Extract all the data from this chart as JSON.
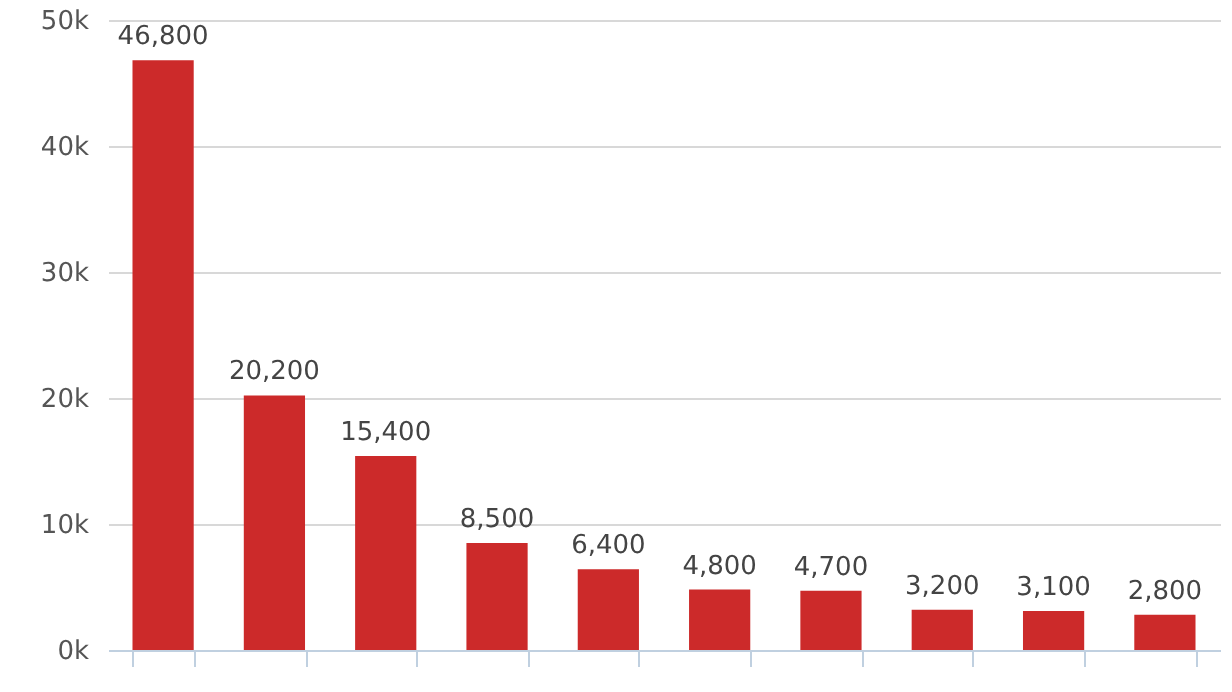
{
  "chart_data": {
    "type": "bar",
    "categories": [
      null,
      null,
      null,
      null,
      null,
      null,
      null,
      null,
      null,
      null
    ],
    "values": [
      46800,
      20200,
      15400,
      8500,
      6400,
      4800,
      4700,
      3200,
      3100,
      2800
    ],
    "value_labels": [
      "46,800",
      "20,200",
      "15,400",
      "8,500",
      "6,400",
      "4,800",
      "4,700",
      "3,200",
      "3,100",
      "2,800"
    ],
    "color": "#cc2a2a",
    "ylim": [
      0,
      50000
    ],
    "yticks": [
      {
        "value": 0,
        "label": "0k"
      },
      {
        "value": 10000,
        "label": "10k"
      },
      {
        "value": 20000,
        "label": "20k"
      },
      {
        "value": 30000,
        "label": "30k"
      },
      {
        "value": 40000,
        "label": "40k"
      },
      {
        "value": 50000,
        "label": "50k"
      }
    ],
    "grid": "y",
    "tick_labels": "y"
  }
}
